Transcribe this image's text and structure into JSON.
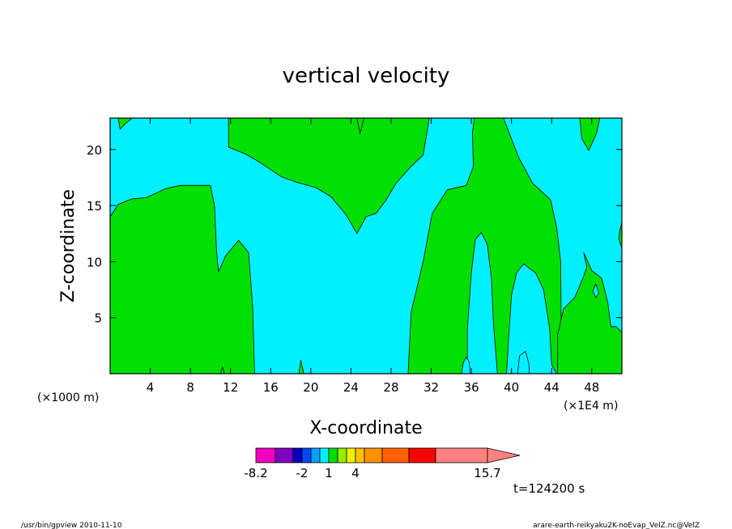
{
  "chart_data": {
    "type": "heatmap",
    "title": "vertical velocity",
    "xlabel": "X-coordinate",
    "ylabel": "Z-coordinate",
    "x_unit_left": "(×1000 m)",
    "x_unit_right": "(×1E4 m)",
    "xlim": [
      0,
      51
    ],
    "ylim": [
      0,
      22.8
    ],
    "x_ticks": [
      4,
      8,
      12,
      16,
      20,
      24,
      28,
      32,
      36,
      40,
      44,
      48
    ],
    "y_ticks": [
      5,
      10,
      15,
      20
    ],
    "background_color": "#00f0ff",
    "regions": [
      {
        "name": "left-block",
        "color": "#00e000",
        "outline": [
          [
            0,
            0
          ],
          [
            0,
            14
          ],
          [
            0.8,
            15.1
          ],
          [
            2.2,
            15.6
          ],
          [
            3.6,
            15.7
          ],
          [
            5.5,
            16.5
          ],
          [
            7,
            16.8
          ],
          [
            10,
            16.8
          ],
          [
            10.4,
            15
          ],
          [
            10.6,
            11
          ],
          [
            10.8,
            9.1
          ],
          [
            11.5,
            10.5
          ],
          [
            12.8,
            11.9
          ],
          [
            13.8,
            10.8
          ],
          [
            14.2,
            6
          ],
          [
            14.4,
            0
          ]
        ]
      },
      {
        "name": "top-hanging-block",
        "color": "#00e000",
        "outline": [
          [
            11.8,
            22.8
          ],
          [
            11.8,
            20.2
          ],
          [
            13.5,
            19.6
          ],
          [
            15,
            18.8
          ],
          [
            17,
            17.6
          ],
          [
            18.5,
            17.1
          ],
          [
            20.5,
            16.6
          ],
          [
            22,
            15.8
          ],
          [
            23.5,
            14.2
          ],
          [
            24.6,
            12.5
          ],
          [
            25.5,
            14
          ],
          [
            26.5,
            14.3
          ],
          [
            27.5,
            15.5
          ],
          [
            28.5,
            17
          ],
          [
            30,
            18.5
          ],
          [
            31.2,
            19.5
          ],
          [
            31.8,
            22.8
          ]
        ]
      },
      {
        "name": "top-left-nub",
        "color": "#00e000",
        "outline": [
          [
            0.8,
            22.8
          ],
          [
            1,
            21.8
          ],
          [
            1.5,
            22.3
          ],
          [
            2.2,
            22.8
          ]
        ]
      },
      {
        "name": "top-mid-nub",
        "color": "#00e000",
        "outline": [
          [
            24.6,
            22.8
          ],
          [
            24.9,
            21.4
          ],
          [
            25.3,
            22.8
          ]
        ]
      },
      {
        "name": "right-structure",
        "color": "#00e000",
        "outline": [
          [
            29.7,
            0
          ],
          [
            30,
            5.5
          ],
          [
            31.2,
            10
          ],
          [
            32.1,
            14.3
          ],
          [
            33.6,
            16.4
          ],
          [
            35.5,
            16.8
          ],
          [
            36.2,
            18.5
          ],
          [
            36.1,
            21.5
          ],
          [
            36.3,
            22.8
          ],
          [
            39.2,
            22.8
          ],
          [
            40.7,
            19.3
          ],
          [
            42.1,
            17
          ],
          [
            43.9,
            15.5
          ],
          [
            44.5,
            13
          ],
          [
            44.9,
            10
          ],
          [
            45,
            0
          ],
          [
            44.5,
            0
          ],
          [
            44,
            0.8
          ],
          [
            43.8,
            4
          ],
          [
            43.2,
            7.5
          ],
          [
            42.4,
            9
          ],
          [
            41.2,
            9.8
          ],
          [
            40.5,
            9
          ],
          [
            40,
            7
          ],
          [
            39.7,
            3
          ],
          [
            39.5,
            0
          ],
          [
            38.6,
            0
          ],
          [
            38.2,
            4.5
          ],
          [
            38,
            8.5
          ],
          [
            37.6,
            11.5
          ],
          [
            37,
            12.6
          ],
          [
            36.4,
            12
          ],
          [
            36,
            9
          ],
          [
            35.6,
            4
          ],
          [
            35.6,
            0
          ]
        ]
      },
      {
        "name": "bottom-right-region",
        "color": "#00e000",
        "outline": [
          [
            44.6,
            0
          ],
          [
            44.6,
            3.5
          ],
          [
            45.2,
            5.8
          ],
          [
            46.3,
            6.8
          ],
          [
            47.1,
            8.5
          ],
          [
            47.5,
            9.5
          ],
          [
            47.2,
            10.8
          ],
          [
            48,
            9.2
          ],
          [
            49,
            8.5
          ],
          [
            49.6,
            6.3
          ],
          [
            49.9,
            4.2
          ],
          [
            50.4,
            4.2
          ],
          [
            51,
            3.7
          ],
          [
            51,
            0
          ]
        ]
      },
      {
        "name": "right-edge-sliver",
        "color": "#00e000",
        "outline": [
          [
            51,
            13.5
          ],
          [
            50.8,
            12.8
          ],
          [
            50.7,
            12
          ],
          [
            51,
            11.2
          ]
        ]
      },
      {
        "name": "top-right-lobe",
        "color": "#00e000",
        "outline": [
          [
            46.8,
            22.8
          ],
          [
            47,
            21
          ],
          [
            47.7,
            19.9
          ],
          [
            48.5,
            21.5
          ],
          [
            48.8,
            22.8
          ]
        ]
      },
      {
        "name": "small-spike-19",
        "color": "#00e000",
        "outline": [
          [
            18.8,
            0
          ],
          [
            19,
            1.2
          ],
          [
            19.3,
            0
          ]
        ]
      },
      {
        "name": "small-spike-11",
        "color": "#00e000",
        "outline": [
          [
            11,
            0
          ],
          [
            11.2,
            0.6
          ],
          [
            11.4,
            0
          ]
        ]
      }
    ],
    "holes": [
      {
        "name": "hole-near-36",
        "color": "#00f0ff",
        "outline": [
          [
            35,
            0
          ],
          [
            35.2,
            1
          ],
          [
            35.5,
            1.5
          ],
          [
            35.8,
            1
          ],
          [
            35.9,
            0
          ]
        ]
      },
      {
        "name": "hole-near-41",
        "color": "#00f0ff",
        "outline": [
          [
            40.6,
            0
          ],
          [
            40.8,
            1.6
          ],
          [
            41.4,
            2
          ],
          [
            41.7,
            1
          ],
          [
            41.8,
            0
          ]
        ]
      },
      {
        "name": "hole-near-48",
        "color": "#00f0ff",
        "outline": [
          [
            48.1,
            7.4
          ],
          [
            48.4,
            8
          ],
          [
            48.7,
            7.2
          ],
          [
            48.4,
            6.8
          ]
        ]
      }
    ],
    "colorbar": {
      "colors": [
        "#f000c0",
        "#8000c0",
        "#0000c0",
        "#0048ff",
        "#00a0ff",
        "#00f0ff",
        "#00e000",
        "#90f000",
        "#f0f000",
        "#ffc000",
        "#ff9000",
        "#ff6000",
        "#ff0000",
        "#ff8080"
      ],
      "boundaries": [
        -8.2,
        -5,
        -3,
        -2,
        -1,
        0,
        1,
        2,
        3,
        4,
        6,
        9,
        12,
        15.7
      ],
      "labels": [
        "-8.2",
        "-2",
        "1",
        "4",
        "15.7"
      ],
      "label_values": [
        -8.2,
        -2,
        1,
        4,
        15.7
      ]
    },
    "annotation": "t=124200 s"
  },
  "footer": {
    "left": "/usr/bin/gpview   2010-11-10",
    "right": "arare-earth-reikyaku2K-noEvap_VelZ.nc@VelZ"
  }
}
